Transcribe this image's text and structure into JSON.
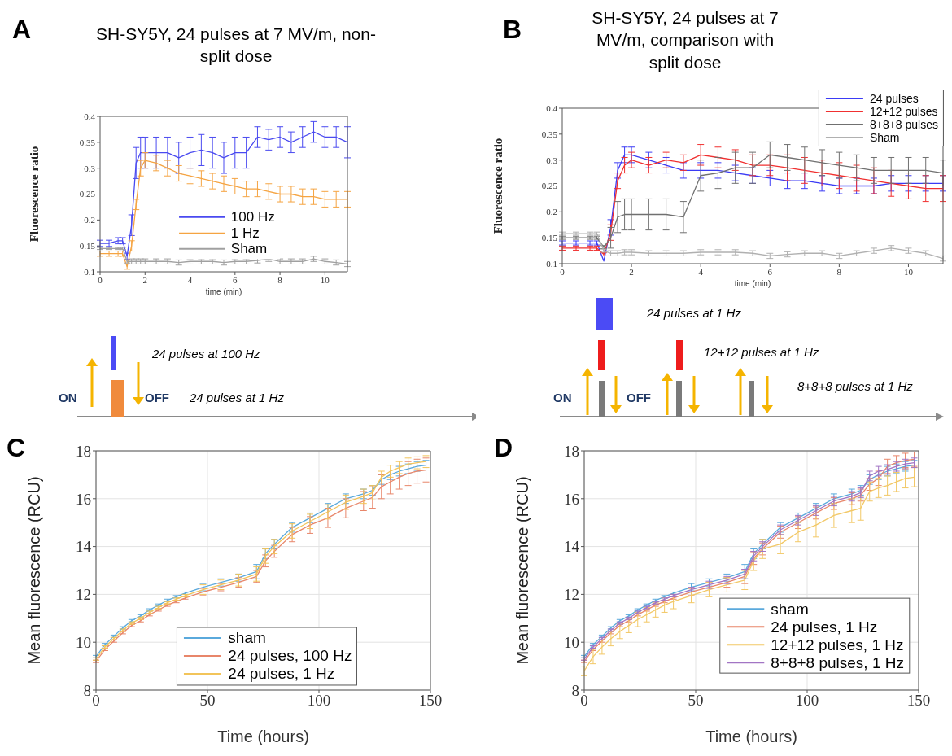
{
  "chart_data": [
    {
      "type": "line",
      "title": "SH-SY5Y, 24 pulses at 7 MV/m, non-split dose",
      "xlabel": "time (min)",
      "ylabel": "Fluorescence ratio",
      "legend": "bottom",
      "marker": "none",
      "line_style": "solid",
      "annotations": [
        "A",
        "24 pulses at 100 Hz",
        "ON",
        "OFF",
        "24 pulses at 1 Hz"
      ],
      "xlim": [
        0,
        11
      ],
      "xticks": [
        0,
        2,
        4,
        6,
        8,
        10
      ],
      "ylim": [
        0.1,
        0.4
      ],
      "yticks": [
        0.1,
        0.15,
        0.2,
        0.25,
        0.3,
        0.35,
        0.4
      ],
      "x": [
        0,
        0.4,
        0.8,
        1.0,
        1.2,
        1.4,
        1.6,
        1.8,
        2.0,
        2.5,
        3,
        3.5,
        4,
        4.5,
        5,
        5.5,
        6,
        6.5,
        7,
        7.5,
        8,
        8.5,
        9,
        9.5,
        10,
        10.5,
        11
      ],
      "series": [
        {
          "name": "100 Hz",
          "color": "#4a4af0",
          "values": [
            0.155,
            0.155,
            0.16,
            0.16,
            0.13,
            0.19,
            0.31,
            0.33,
            0.33,
            0.33,
            0.33,
            0.32,
            0.33,
            0.335,
            0.33,
            0.32,
            0.33,
            0.33,
            0.36,
            0.355,
            0.36,
            0.35,
            0.36,
            0.37,
            0.36,
            0.36,
            0.35
          ],
          "errors": [
            0.006,
            0.006,
            0.006,
            0.006,
            0.006,
            0.02,
            0.03,
            0.03,
            0.03,
            0.03,
            0.03,
            0.03,
            0.03,
            0.03,
            0.03,
            0.03,
            0.03,
            0.03,
            0.02,
            0.02,
            0.02,
            0.02,
            0.02,
            0.02,
            0.02,
            0.02,
            0.03
          ]
        },
        {
          "name": "1 Hz",
          "color": "#f5a442",
          "values": [
            0.135,
            0.135,
            0.135,
            0.135,
            0.11,
            0.15,
            0.23,
            0.3,
            0.315,
            0.31,
            0.3,
            0.29,
            0.285,
            0.28,
            0.275,
            0.27,
            0.265,
            0.26,
            0.26,
            0.255,
            0.25,
            0.25,
            0.245,
            0.245,
            0.24,
            0.24,
            0.24
          ],
          "errors": [
            0.005,
            0.005,
            0.005,
            0.005,
            0.005,
            0.01,
            0.01,
            0.015,
            0.015,
            0.015,
            0.015,
            0.015,
            0.015,
            0.015,
            0.015,
            0.015,
            0.015,
            0.015,
            0.015,
            0.015,
            0.015,
            0.015,
            0.015,
            0.015,
            0.015,
            0.015,
            0.015
          ]
        },
        {
          "name": "Sham",
          "color": "#a0a0a0",
          "values": [
            0.145,
            0.145,
            0.145,
            0.145,
            0.12,
            0.12,
            0.12,
            0.12,
            0.12,
            0.12,
            0.12,
            0.118,
            0.12,
            0.12,
            0.12,
            0.118,
            0.12,
            0.12,
            0.122,
            0.125,
            0.12,
            0.12,
            0.12,
            0.125,
            0.12,
            0.118,
            0.115
          ],
          "errors": [
            0.002,
            0.002,
            0.002,
            0.002,
            0.003,
            0.005,
            0.005,
            0.005,
            0.005,
            0.005,
            0.005,
            0.005,
            0.005,
            0.005,
            0.005,
            0.005,
            0.005,
            0.005,
            0.005,
            0.005,
            0.005,
            0.005,
            0.005,
            0.005,
            0.005,
            0.005,
            0.005
          ]
        }
      ]
    },
    {
      "type": "line",
      "title": "SH-SY5Y, 24 pulses at 7 MV/m, comparison with split dose",
      "xlabel": "time (min)",
      "ylabel": "Fluorescence ratio",
      "legend": "top right",
      "marker": "none",
      "line_style": "solid",
      "annotations": [
        "B",
        "24 pulses at 1 Hz",
        "12+12 pulses at 1 Hz",
        "ON",
        "OFF",
        "8+8+8 pulses at 1 Hz"
      ],
      "xlim": [
        0,
        11
      ],
      "xticks": [
        0,
        2,
        4,
        6,
        8,
        10
      ],
      "ylim": [
        0.1,
        0.4
      ],
      "yticks": [
        0.1,
        0.15,
        0.2,
        0.25,
        0.3,
        0.35,
        0.4
      ],
      "x": [
        0,
        0.4,
        0.8,
        1.0,
        1.2,
        1.4,
        1.6,
        1.8,
        2.0,
        2.5,
        3,
        3.5,
        4,
        4.5,
        5,
        5.5,
        6,
        6.5,
        7,
        7.5,
        8,
        8.5,
        9,
        9.5,
        10,
        10.5,
        11
      ],
      "series": [
        {
          "name": "24 pulses",
          "color": "#3b3bf5",
          "values": [
            0.14,
            0.14,
            0.14,
            0.14,
            0.105,
            0.17,
            0.28,
            0.31,
            0.31,
            0.3,
            0.29,
            0.28,
            0.28,
            0.28,
            0.275,
            0.27,
            0.265,
            0.26,
            0.26,
            0.255,
            0.25,
            0.25,
            0.25,
            0.255,
            0.255,
            0.255,
            0.255
          ],
          "errors": [
            0.004,
            0.004,
            0.004,
            0.004,
            null,
            0.015,
            0.015,
            0.015,
            0.015,
            0.015,
            0.015,
            0.015,
            0.015,
            0.015,
            0.015,
            0.015,
            0.015,
            0.015,
            0.015,
            0.015,
            0.015,
            0.015,
            0.015,
            0.015,
            0.015,
            0.015,
            0.015
          ]
        },
        {
          "name": "12+12 pulses",
          "color": "#f03030",
          "values": [
            0.13,
            0.13,
            0.13,
            0.13,
            0.118,
            0.16,
            0.26,
            0.29,
            0.3,
            0.29,
            0.3,
            0.295,
            0.31,
            0.305,
            0.3,
            0.29,
            0.29,
            0.285,
            0.28,
            0.275,
            0.27,
            0.265,
            0.26,
            0.255,
            0.25,
            0.245,
            0.245
          ],
          "errors": [
            0.004,
            0.004,
            0.004,
            0.004,
            0.003,
            0.015,
            0.015,
            0.015,
            0.015,
            0.015,
            0.015,
            0.015,
            0.02,
            0.02,
            0.02,
            0.02,
            0.02,
            0.025,
            0.025,
            0.025,
            0.025,
            0.025,
            0.025,
            0.025,
            0.025,
            0.025,
            0.025
          ]
        },
        {
          "name": "8+8+8 pulses",
          "color": "#707070",
          "values": [
            0.15,
            0.15,
            0.15,
            0.15,
            0.132,
            0.15,
            0.19,
            0.195,
            0.195,
            0.195,
            0.195,
            0.19,
            0.27,
            0.275,
            0.285,
            0.285,
            0.31,
            0.305,
            0.3,
            0.295,
            0.29,
            0.285,
            0.28,
            0.28,
            0.28,
            0.28,
            0.275
          ],
          "errors": [
            0.003,
            0.003,
            0.003,
            0.003,
            0.003,
            0.02,
            0.03,
            0.03,
            0.03,
            0.03,
            0.03,
            0.03,
            0.03,
            0.03,
            0.03,
            0.03,
            0.025,
            0.025,
            0.025,
            0.025,
            0.025,
            0.025,
            0.025,
            0.025,
            0.025,
            0.025,
            0.025
          ]
        },
        {
          "name": "Sham",
          "color": "#b0b0b0",
          "values": [
            0.158,
            0.158,
            0.158,
            0.158,
            0.125,
            0.12,
            0.12,
            0.122,
            0.122,
            0.12,
            0.12,
            0.12,
            0.122,
            0.122,
            0.122,
            0.12,
            0.115,
            0.118,
            0.12,
            0.12,
            0.115,
            0.12,
            0.125,
            0.13,
            0.125,
            0.12,
            0.11
          ],
          "errors": [
            0.003,
            0.003,
            0.003,
            0.003,
            0.003,
            0.005,
            0.005,
            0.005,
            0.005,
            0.005,
            0.005,
            0.005,
            0.005,
            0.005,
            0.005,
            0.005,
            0.005,
            0.005,
            0.005,
            0.005,
            0.005,
            0.005,
            0.005,
            0.005,
            0.005,
            0.005,
            0.005
          ]
        }
      ]
    },
    {
      "type": "line",
      "xlabel": "Time (hours)",
      "ylabel": "Mean fluorescence (RCU)",
      "legend": "bottom",
      "marker": "none",
      "line_style": "solid",
      "grid": true,
      "annotations": [
        "C"
      ],
      "xlim": [
        0,
        150
      ],
      "xticks": [
        0,
        50,
        100,
        150
      ],
      "ylim": [
        8,
        18
      ],
      "yticks": [
        8,
        10,
        12,
        14,
        16,
        18
      ],
      "x": [
        0,
        4,
        8,
        12,
        16,
        20,
        24,
        28,
        32,
        36,
        40,
        48,
        56,
        64,
        72,
        76,
        80,
        88,
        96,
        104,
        112,
        120,
        124,
        128,
        132,
        136,
        140,
        144,
        148
      ],
      "series": [
        {
          "name": "sham",
          "color": "#5aa9dc",
          "values": [
            9.4,
            9.9,
            10.25,
            10.6,
            10.9,
            11.1,
            11.35,
            11.55,
            11.75,
            11.9,
            12.05,
            12.3,
            12.5,
            12.7,
            12.95,
            13.7,
            14.1,
            14.8,
            15.2,
            15.6,
            16.0,
            16.2,
            16.35,
            16.8,
            17.0,
            17.15,
            17.25,
            17.35,
            17.4
          ],
          "errors": [
            0.05,
            0.05,
            0.05,
            0.05,
            0.05,
            0.05,
            0.05,
            0.05,
            0.05,
            0.05,
            0.05,
            0.15,
            0.15,
            0.15,
            0.3,
            0.2,
            0.2,
            0.2,
            0.2,
            0.2,
            0.2,
            0.2,
            0.2,
            0.2,
            0.2,
            0.2,
            0.2,
            0.2,
            0.2
          ]
        },
        {
          "name": "24 pulses, 100 Hz",
          "color": "#e8866a",
          "values": [
            9.2,
            9.7,
            10.05,
            10.4,
            10.7,
            10.9,
            11.15,
            11.35,
            11.55,
            11.7,
            11.85,
            12.1,
            12.3,
            12.5,
            12.75,
            13.4,
            13.8,
            14.5,
            14.9,
            15.2,
            15.6,
            15.9,
            16.05,
            16.5,
            16.7,
            16.9,
            17.05,
            17.15,
            17.2
          ],
          "errors": [
            0.05,
            0.05,
            0.05,
            0.05,
            0.05,
            0.05,
            0.05,
            0.05,
            0.05,
            0.05,
            0.05,
            0.15,
            0.15,
            0.2,
            0.25,
            0.25,
            0.25,
            0.3,
            0.35,
            0.4,
            0.4,
            0.4,
            0.45,
            0.5,
            0.5,
            0.5,
            0.5,
            0.5,
            0.5
          ]
        },
        {
          "name": "24 pulses, 1 Hz",
          "color": "#f2c45a",
          "values": [
            9.3,
            9.8,
            10.15,
            10.5,
            10.8,
            11.0,
            11.25,
            11.45,
            11.65,
            11.8,
            11.95,
            12.2,
            12.4,
            12.6,
            12.85,
            13.6,
            14.0,
            14.65,
            15.05,
            15.45,
            15.85,
            16.1,
            16.25,
            16.9,
            17.15,
            17.3,
            17.45,
            17.5,
            17.55
          ],
          "errors": [
            0.05,
            0.05,
            0.05,
            0.05,
            0.05,
            0.05,
            0.05,
            0.05,
            0.05,
            0.05,
            0.05,
            0.2,
            0.2,
            0.25,
            0.3,
            0.3,
            0.3,
            0.3,
            0.3,
            0.3,
            0.3,
            0.3,
            0.3,
            0.25,
            0.25,
            0.25,
            0.25,
            0.25,
            0.25
          ]
        }
      ]
    },
    {
      "type": "line",
      "xlabel": "Time (hours)",
      "ylabel": "Mean fluorescence (RCU)",
      "legend": "bottom right",
      "marker": "none",
      "line_style": "solid",
      "grid": true,
      "annotations": [
        "D"
      ],
      "xlim": [
        0,
        150
      ],
      "xticks": [
        0,
        50,
        100,
        150
      ],
      "ylim": [
        8,
        18
      ],
      "yticks": [
        8,
        10,
        12,
        14,
        16,
        18
      ],
      "x": [
        0,
        4,
        8,
        12,
        16,
        20,
        24,
        28,
        32,
        36,
        40,
        48,
        56,
        64,
        72,
        76,
        80,
        88,
        96,
        104,
        112,
        120,
        124,
        128,
        132,
        136,
        140,
        144,
        148
      ],
      "series": [
        {
          "name": "sham",
          "color": "#5aa9dc",
          "values": [
            9.4,
            9.9,
            10.25,
            10.6,
            10.9,
            11.1,
            11.35,
            11.55,
            11.75,
            11.9,
            12.05,
            12.3,
            12.5,
            12.7,
            12.95,
            13.7,
            14.1,
            14.8,
            15.2,
            15.6,
            16.0,
            16.2,
            16.35,
            16.8,
            17.0,
            17.15,
            17.25,
            17.35,
            17.4
          ],
          "errors": [
            0.05,
            0.05,
            0.05,
            0.05,
            0.05,
            0.05,
            0.05,
            0.05,
            0.05,
            0.05,
            0.05,
            0.15,
            0.15,
            0.15,
            0.3,
            0.2,
            0.2,
            0.2,
            0.2,
            0.2,
            0.2,
            0.2,
            0.2,
            0.2,
            0.2,
            0.2,
            0.2,
            0.2,
            0.2
          ]
        },
        {
          "name": "24 pulses, 1 Hz",
          "color": "#e8866a",
          "values": [
            9.2,
            9.7,
            10.05,
            10.4,
            10.7,
            10.9,
            11.15,
            11.35,
            11.55,
            11.7,
            11.85,
            12.1,
            12.3,
            12.5,
            12.75,
            13.5,
            13.9,
            14.6,
            15.0,
            15.4,
            15.8,
            16.0,
            16.15,
            16.6,
            16.85,
            17.35,
            17.5,
            17.6,
            17.65
          ],
          "errors": [
            0.05,
            0.05,
            0.05,
            0.05,
            0.05,
            0.05,
            0.05,
            0.05,
            0.05,
            0.05,
            0.05,
            0.15,
            0.2,
            0.2,
            0.3,
            0.25,
            0.25,
            0.25,
            0.25,
            0.25,
            0.25,
            0.25,
            0.25,
            0.25,
            0.3,
            0.3,
            0.3,
            0.3,
            0.3
          ]
        },
        {
          "name": "12+12 pulses, 1 Hz",
          "color": "#f2c866",
          "values": [
            8.8,
            9.4,
            9.8,
            10.15,
            10.45,
            10.7,
            10.95,
            11.15,
            11.35,
            11.55,
            11.7,
            11.95,
            12.2,
            12.4,
            12.6,
            13.4,
            13.9,
            14.1,
            14.6,
            14.9,
            15.3,
            15.5,
            15.6,
            16.3,
            16.45,
            16.55,
            16.7,
            16.85,
            16.9
          ],
          "errors": [
            0.2,
            0.3,
            0.3,
            0.3,
            0.3,
            0.3,
            0.3,
            0.3,
            0.3,
            0.3,
            0.3,
            0.3,
            0.3,
            0.3,
            0.4,
            0.4,
            0.4,
            0.4,
            0.4,
            0.5,
            0.5,
            0.5,
            0.5,
            0.4,
            0.4,
            0.4,
            0.4,
            0.4,
            0.4
          ]
        },
        {
          "name": "8+8+8 pulses, 1 Hz",
          "color": "#a275c4",
          "values": [
            9.3,
            9.8,
            10.15,
            10.5,
            10.8,
            11.0,
            11.25,
            11.45,
            11.65,
            11.8,
            11.95,
            12.2,
            12.4,
            12.6,
            12.85,
            13.6,
            14.0,
            14.7,
            15.1,
            15.5,
            15.9,
            16.1,
            16.25,
            16.95,
            17.15,
            17.22,
            17.35,
            17.45,
            17.5
          ],
          "errors": [
            0.05,
            0.05,
            0.05,
            0.05,
            0.05,
            0.05,
            0.05,
            0.05,
            0.05,
            0.05,
            0.05,
            0.1,
            0.15,
            0.15,
            0.2,
            0.2,
            0.2,
            0.2,
            0.2,
            0.2,
            0.2,
            0.2,
            0.2,
            0.2,
            0.2,
            0.2,
            0.2,
            0.2,
            0.2
          ]
        }
      ]
    }
  ]
}
